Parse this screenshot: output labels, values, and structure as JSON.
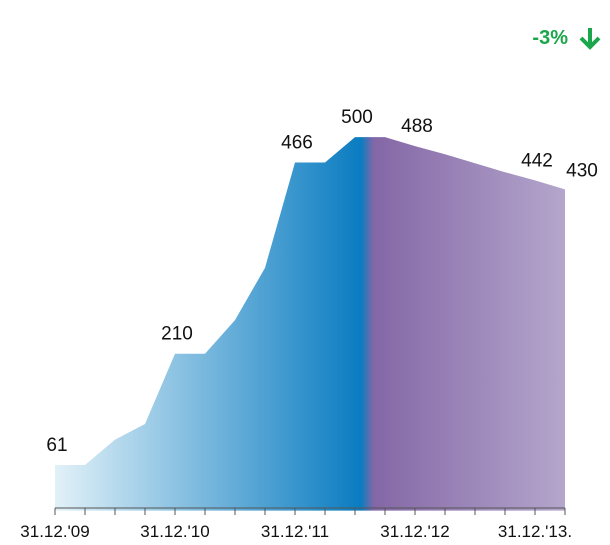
{
  "chart_data": {
    "type": "area",
    "annotation": "-3%",
    "annotation_color": "#1aa64a",
    "categories": [
      "31.12.'09",
      null,
      null,
      null,
      "31.12.'10",
      null,
      null,
      null,
      "31.12.'11",
      null,
      null,
      null,
      "31.12.'12",
      null,
      null,
      null,
      "31.12.'13.",
      null
    ],
    "values": [
      61,
      61,
      95,
      116,
      210,
      210,
      255,
      325,
      466,
      466,
      500,
      500,
      488,
      477,
      465,
      453,
      442,
      430
    ],
    "value_labels": [
      "61",
      null,
      null,
      null,
      "210",
      null,
      null,
      null,
      "466",
      null,
      "500",
      null,
      "488",
      null,
      null,
      null,
      "442",
      "430"
    ],
    "colors": [
      "#e2f1f8",
      "#0a7cc1",
      "#8467a6",
      "#b4a6cc"
    ]
  }
}
